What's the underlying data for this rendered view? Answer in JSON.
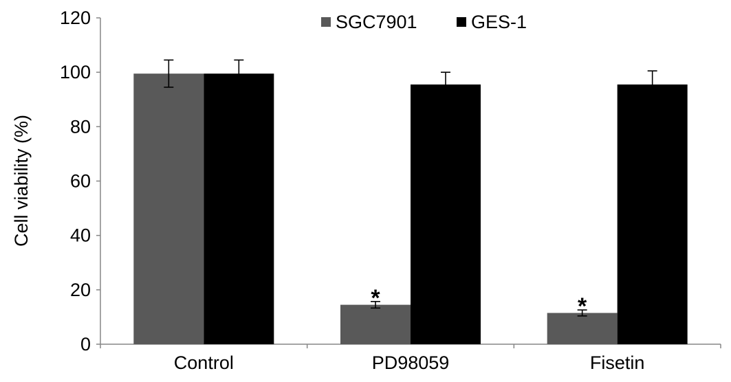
{
  "chart_data": {
    "type": "bar",
    "title": "",
    "xlabel": "",
    "ylabel": "Cell viability (%)",
    "ylim": [
      0,
      120
    ],
    "yticks": [
      0,
      20,
      40,
      60,
      80,
      100,
      120
    ],
    "grid": false,
    "legend_position": "top-center",
    "categories": [
      "Control",
      "PD98059",
      "Fisetin"
    ],
    "series": [
      {
        "name": "SGC7901",
        "color": "#595959",
        "values": [
          99.5,
          14.5,
          11.5
        ],
        "errors": [
          5,
          1.2,
          1.1
        ]
      },
      {
        "name": "GES-1",
        "color": "#000000",
        "values": [
          99.5,
          95.5,
          95.5
        ],
        "errors": [
          5,
          4.5,
          5
        ]
      }
    ],
    "annotations": [
      {
        "text": "*",
        "category": "PD98059",
        "series": "SGC7901"
      },
      {
        "text": "*",
        "category": "Fisetin",
        "series": "SGC7901"
      }
    ]
  }
}
